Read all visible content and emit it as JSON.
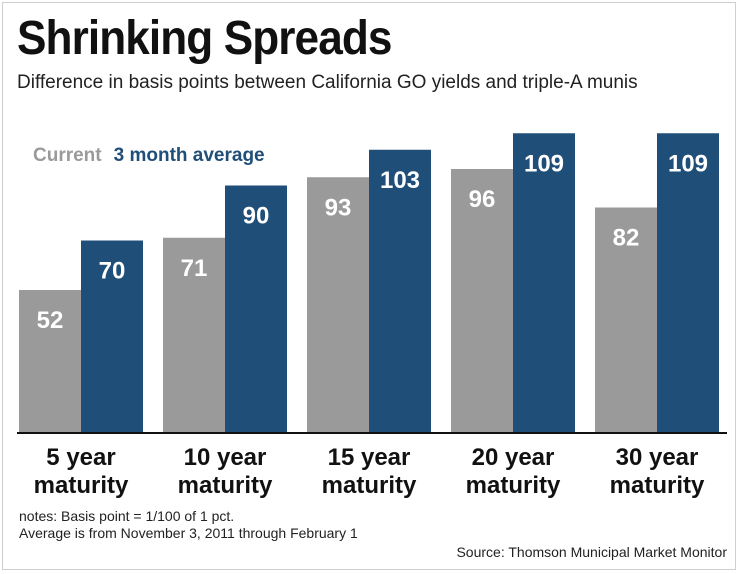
{
  "title": "Shrinking Spreads",
  "subtitle": "Difference in basis points between California GO yields and triple-A munis",
  "notes": {
    "line1": "notes: Basis point = 1/100 of 1 pct.",
    "line2": "Average is from November 3, 2011 through February 1",
    "source": "Source: Thomson Municipal Market Monitor"
  },
  "chart_data": {
    "type": "bar",
    "title": "Shrinking Spreads",
    "subtitle": "Difference in basis points between California GO yields and triple-A munis",
    "categories": [
      [
        "5 year",
        "maturity"
      ],
      [
        "10 year",
        "maturity"
      ],
      [
        "15 year",
        "maturity"
      ],
      [
        "20 year",
        "maturity"
      ],
      [
        "30 year",
        "maturity"
      ]
    ],
    "series": [
      {
        "name": "Current",
        "values": [
          52,
          71,
          93,
          96,
          82
        ],
        "color": "#9a9a9a"
      },
      {
        "name": "3 month average",
        "values": [
          70,
          90,
          103,
          109,
          109
        ],
        "color": "#1f4e79"
      }
    ],
    "ylim": [
      0,
      109
    ],
    "legend": "top-left",
    "grid": false,
    "data_labels": true
  }
}
